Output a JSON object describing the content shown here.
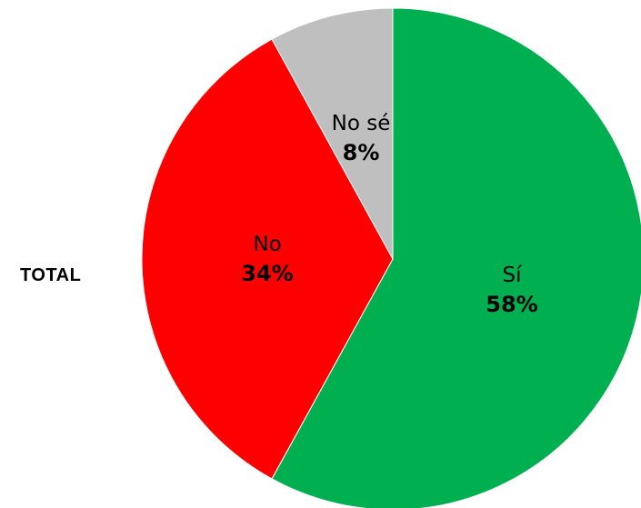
{
  "row_label": "TOTAL",
  "chart_data": {
    "type": "pie",
    "start_angle": "12 o'clock",
    "direction": "clockwise",
    "slices": [
      {
        "label": "Sí",
        "value": 58,
        "value_label": "58%",
        "color": "#00B050",
        "label_color": "#000000"
      },
      {
        "label": "No",
        "value": 34,
        "value_label": "34%",
        "color": "#FF0000",
        "label_color": "#000000"
      },
      {
        "label": "No sé",
        "value": 8,
        "value_label": "8%",
        "color": "#BFBFBF",
        "label_color": "#000000"
      }
    ]
  }
}
